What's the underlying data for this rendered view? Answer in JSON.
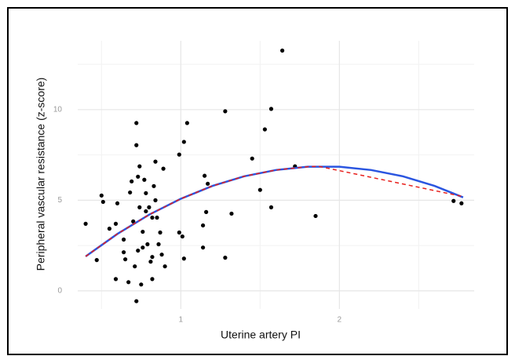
{
  "chart_data": {
    "type": "scatter",
    "x_label": "Uterine artery PI",
    "y_label": "Peripheral vascular resistance (z-score)",
    "xlim": [
      0.35,
      2.85
    ],
    "ylim": [
      -1,
      13.8
    ],
    "xticks": [
      1,
      2
    ],
    "yticks": [
      0,
      5,
      10
    ],
    "grid": true,
    "color": "#000000",
    "x": [
      0.4,
      0.47,
      0.5,
      0.51,
      0.55,
      0.59,
      0.6,
      0.59,
      0.64,
      0.64,
      0.65,
      0.67,
      0.68,
      0.69,
      0.7,
      0.71,
      0.72,
      0.72,
      0.72,
      0.73,
      0.73,
      0.74,
      0.74,
      0.75,
      0.76,
      0.76,
      0.77,
      0.78,
      0.78,
      0.79,
      0.8,
      0.81,
      0.82,
      0.82,
      0.82,
      0.83,
      0.84,
      0.84,
      0.85,
      0.86,
      0.87,
      0.89,
      0.9,
      0.88,
      0.99,
      0.99,
      1.01,
      1.02,
      1.02,
      1.04,
      1.14,
      1.14,
      1.16,
      1.15,
      1.17,
      1.28,
      1.28,
      1.32,
      1.45,
      1.5,
      1.53,
      1.57,
      1.57,
      1.64,
      1.72,
      1.85,
      2.72,
      2.77
    ],
    "values": [
      3.7,
      1.7,
      5.26,
      4.91,
      3.43,
      3.7,
      4.83,
      0.65,
      2.13,
      2.83,
      1.74,
      0.48,
      5.43,
      6.04,
      3.83,
      1.35,
      -0.57,
      9.26,
      8.04,
      6.3,
      2.22,
      6.87,
      4.61,
      0.35,
      2.39,
      3.26,
      6.13,
      5.39,
      4.39,
      2.57,
      4.61,
      1.61,
      4.04,
      0.65,
      1.87,
      5.78,
      7.13,
      5.0,
      4.04,
      2.57,
      3.22,
      6.74,
      1.35,
      2.0,
      7.52,
      3.22,
      3.0,
      1.78,
      8.22,
      9.26,
      2.39,
      3.61,
      4.35,
      6.35,
      5.91,
      9.91,
      1.83,
      4.26,
      7.3,
      5.57,
      8.91,
      4.61,
      10.04,
      13.26,
      6.87,
      4.13,
      4.96,
      4.83
    ],
    "lines": [
      {
        "color": "#2a55e0",
        "dashed": false,
        "x": [
          0.4,
          0.6,
          0.8,
          1.0,
          1.2,
          1.4,
          1.6,
          1.8,
          2.0,
          2.2,
          2.4,
          2.6,
          2.78
        ],
        "values": [
          1.9,
          3.14,
          4.2,
          5.08,
          5.79,
          6.32,
          6.67,
          6.85,
          6.85,
          6.67,
          6.32,
          5.79,
          5.16
        ]
      },
      {
        "color": "#e8201c",
        "dashed": true,
        "x": [
          0.4,
          0.6,
          0.8,
          1.0,
          1.2,
          1.4,
          1.6,
          1.8,
          1.87,
          2.78
        ],
        "values": [
          1.9,
          3.14,
          4.2,
          5.08,
          5.79,
          6.32,
          6.67,
          6.85,
          6.87,
          5.2
        ]
      }
    ]
  }
}
